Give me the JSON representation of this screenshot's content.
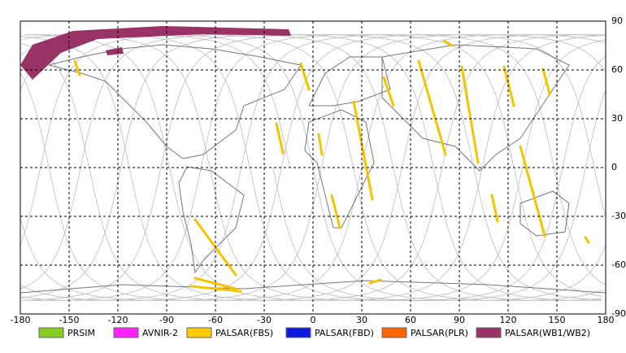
{
  "map": {
    "xticks": [
      -180,
      -150,
      -120,
      -90,
      -60,
      -30,
      0,
      30,
      60,
      90,
      120,
      150,
      180
    ],
    "yticks": [
      90,
      60,
      30,
      0,
      -30,
      -60,
      -90
    ],
    "xlim": [
      -180,
      180
    ],
    "ylim": [
      -90,
      90
    ],
    "legend": [
      {
        "name": "PRSIM",
        "color": "#88cc22"
      },
      {
        "name": "AVNIR-2",
        "color": "#ff22ff"
      },
      {
        "name": "PALSAR(FBS)",
        "color": "#ffcc00"
      },
      {
        "name": "PALSAR(FBD)",
        "color": "#0a1adf"
      },
      {
        "name": "PALSAR(PLR)",
        "color": "#ff6600"
      },
      {
        "name": "PALSAR(WB1/WB2)",
        "color": "#993366"
      }
    ]
  }
}
